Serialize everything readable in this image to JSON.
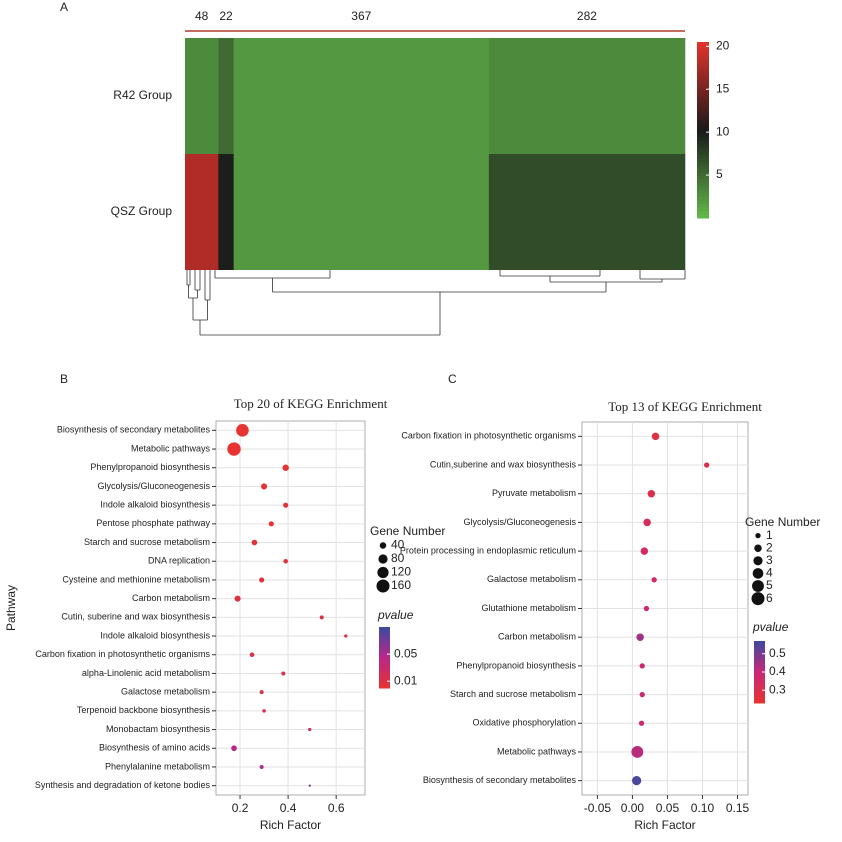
{
  "chart_data": [
    {
      "type": "heatmap",
      "label": "A",
      "column_groups": [
        48,
        22,
        367,
        282
      ],
      "series": [
        {
          "name": "R42 Group",
          "values": [
            3,
            5,
            2,
            3
          ]
        },
        {
          "name": "QSZ Group",
          "values": [
            18,
            10,
            2,
            7
          ]
        }
      ],
      "clim": [
        0,
        20.5
      ],
      "cticks": [
        5,
        10,
        15,
        20
      ],
      "colors": [
        "#62b84a",
        "#1a1a1a",
        "#e3322b"
      ]
    },
    {
      "type": "bubble",
      "label": "B",
      "title": "Top 20 of KEGG Enrichment",
      "xlabel": "Rich Factor",
      "ylabel": "Pathway",
      "categories": [
        "Biosynthesis of secondary metabolites",
        "Metabolic pathways",
        "Phenylpropanoid biosynthesis",
        "Glycolysis/Gluconeogenesis",
        "Indole alkaloid biosynthesis",
        "Pentose phosphate pathway",
        "Starch and sucrose metabolism",
        "DNA replication",
        "Cysteine and methionine metabolism",
        "Carbon metabolism",
        "Cutin, suberine and wax biosynthesis",
        "Indole alkaloid biosynthesis",
        "Carbon fixation in photosynthetic organisms",
        "alpha-Linolenic acid metabolism",
        "Galactose metabolism",
        "Terpenoid backbone biosynthesis",
        "Monobactam biosynthesis",
        "Biosynthesis of amino acids",
        "Phenylalanine metabolism",
        "Synthesis and degradation of ketone bodies"
      ],
      "values": [
        0.21,
        0.175,
        0.39,
        0.3,
        0.39,
        0.33,
        0.26,
        0.39,
        0.29,
        0.19,
        0.54,
        0.64,
        0.25,
        0.38,
        0.29,
        0.3,
        0.49,
        0.175,
        0.29,
        0.49
      ],
      "sizes": [
        150,
        170,
        40,
        35,
        25,
        25,
        30,
        20,
        25,
        35,
        15,
        10,
        20,
        15,
        15,
        12,
        10,
        30,
        15,
        5
      ],
      "pvalues": [
        0.001,
        0.001,
        0.002,
        0.003,
        0.004,
        0.004,
        0.005,
        0.006,
        0.006,
        0.008,
        0.01,
        0.012,
        0.012,
        0.013,
        0.015,
        0.02,
        0.025,
        0.045,
        0.05,
        0.07
      ],
      "xlim": [
        0.1,
        0.72
      ],
      "xticks": [
        0.2,
        0.4,
        0.6
      ],
      "size_title": "Gene Number",
      "size_ticks": [
        40,
        80,
        120,
        160
      ],
      "color_title": "pvalue",
      "clim": [
        0,
        0.09
      ],
      "cticks": [
        0.05,
        0.01
      ],
      "colors": [
        "#e8332f",
        "#b8288a",
        "#3c4aa0"
      ]
    },
    {
      "type": "bubble",
      "label": "C",
      "title": "Top 13 of KEGG Enrichment",
      "xlabel": "Rich Factor",
      "categories": [
        "Carbon fixation in photosynthetic organisms",
        "Cutin,suberine and wax biosynthesis",
        "Pyruvate metabolism",
        "Glycolysis/Gluconeogenesis",
        "Protein processing in endoplasmic reticulum",
        "Galactose metabolism",
        "Glutathione metabolism",
        "Carbon metabolism",
        "Phenylpropanoid biosynthesis",
        "Starch and sucrose metabolism",
        "Oxidative phosphorylation",
        "Metabolic pathways",
        "Biosynthesis of secondary metabolites"
      ],
      "values": [
        0.033,
        0.106,
        0.027,
        0.021,
        0.017,
        0.031,
        0.02,
        0.011,
        0.014,
        0.014,
        0.013,
        0.007,
        0.006
      ],
      "sizes": [
        2,
        1,
        2,
        2,
        2,
        1,
        1,
        2,
        1,
        1,
        1,
        5,
        3
      ],
      "pvalues": [
        0.28,
        0.3,
        0.3,
        0.33,
        0.34,
        0.36,
        0.38,
        0.45,
        0.38,
        0.38,
        0.38,
        0.42,
        0.55
      ],
      "xlim": [
        -0.072,
        0.165
      ],
      "xticks": [
        {
          "value": -0.05,
          "label": "-0.05"
        },
        {
          "value": 0,
          "label": "0.00"
        },
        0.05,
        {
          "value": 0.1,
          "label": "0.10"
        },
        0.15
      ],
      "size_title": "Gene Number",
      "size_ticks": [
        1,
        2,
        3,
        4,
        5,
        6
      ],
      "color_title": "pvalue",
      "clim": [
        0.23,
        0.57
      ],
      "cticks": [
        0.5,
        0.4,
        0.3
      ],
      "colors": [
        "#e8332f",
        "#c8287a",
        "#3c4aa0"
      ]
    }
  ]
}
